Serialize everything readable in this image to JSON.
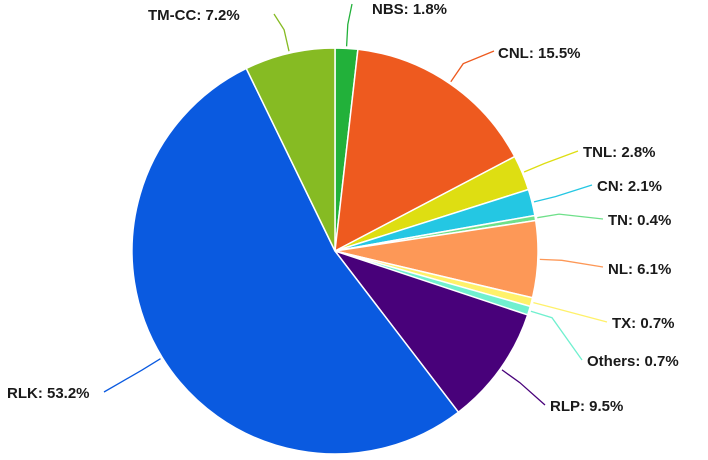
{
  "chart_data": {
    "type": "pie",
    "slices": [
      {
        "name": "NBS",
        "value": 1.8,
        "label": "NBS: 1.8%",
        "color": "#22b13a"
      },
      {
        "name": "CNL",
        "value": 15.5,
        "label": "CNL: 15.5%",
        "color": "#ee5a1f"
      },
      {
        "name": "TNL",
        "value": 2.8,
        "label": "TNL: 2.8%",
        "color": "#dede12"
      },
      {
        "name": "CN",
        "value": 2.1,
        "label": "CN: 2.1%",
        "color": "#24c7e3"
      },
      {
        "name": "TN",
        "value": 0.4,
        "label": "TN: 0.4%",
        "color": "#6fe08a"
      },
      {
        "name": "NL",
        "value": 6.1,
        "label": "NL: 6.1%",
        "color": "#fd9857"
      },
      {
        "name": "TX",
        "value": 0.7,
        "label": "TX: 0.7%",
        "color": "#fff16a"
      },
      {
        "name": "Others",
        "value": 0.7,
        "label": "Others: 0.7%",
        "color": "#70f0cf"
      },
      {
        "name": "RLP",
        "value": 9.5,
        "label": "RLP: 9.5%",
        "color": "#48017a"
      },
      {
        "name": "RLK",
        "value": 53.2,
        "label": "RLK: 53.2%",
        "color": "#0a5ae0"
      },
      {
        "name": "TM-CC",
        "value": 7.2,
        "label": "TM-CC: 7.2%",
        "color": "#86bb23"
      }
    ],
    "start_angle": "top",
    "direction": "clockwise",
    "legend": "none"
  }
}
